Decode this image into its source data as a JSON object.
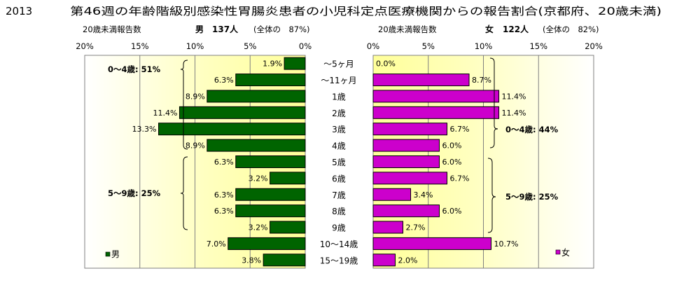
{
  "header": {
    "year": "2013",
    "title": "第46週の年齢階級別感染性胃腸炎患者の小児科定点医療機関からの報告割合(京都府、20歳未満)"
  },
  "left_panel": {
    "caption": "20歳未満報告数",
    "sex": "男",
    "count": "137人",
    "share": "(全体の　87%)",
    "legend": "男",
    "ticks": [
      "20%",
      "15%",
      "10%",
      "5%",
      "0%"
    ],
    "bracket_labels": [
      "0～4歳: 51%",
      "5～9歳: 25%"
    ]
  },
  "right_panel": {
    "caption": "20歳未満報告数",
    "sex": "女",
    "count": "122人",
    "share": "(全体の　82%)",
    "legend": "女",
    "ticks": [
      "0%",
      "5%",
      "10%",
      "15%",
      "20%"
    ],
    "bracket_labels": [
      "0～4歳: 44%",
      "5～9歳: 25%"
    ]
  },
  "chart_data": {
    "type": "bar",
    "orientation": "horizontal-butterfly",
    "categories": [
      "～5ヶ月",
      "～11ヶ月",
      "1歳",
      "2歳",
      "3歳",
      "4歳",
      "5歳",
      "6歳",
      "7歳",
      "8歳",
      "9歳",
      "10～14歳",
      "15～19歳"
    ],
    "series": [
      {
        "name": "男",
        "color": "#006400",
        "values": [
          1.9,
          6.3,
          8.9,
          11.4,
          13.3,
          8.9,
          6.3,
          3.2,
          6.3,
          6.3,
          3.2,
          7.0,
          3.8
        ],
        "labels": [
          "1.9%",
          "6.3%",
          "8.9%",
          "11.4%",
          "13.3%",
          "8.9%",
          "6.3%",
          "3.2%",
          "6.3%",
          "6.3%",
          "3.2%",
          "7.0%",
          "3.8%"
        ]
      },
      {
        "name": "女",
        "color": "#CC00CC",
        "values": [
          0.0,
          8.7,
          11.4,
          11.4,
          6.7,
          6.0,
          6.0,
          6.7,
          3.4,
          6.0,
          2.7,
          10.7,
          2.0
        ],
        "labels": [
          "0.0%",
          "8.7%",
          "11.4%",
          "11.4%",
          "6.7%",
          "6.0%",
          "6.0%",
          "6.7%",
          "3.4%",
          "6.0%",
          "2.7%",
          "10.7%",
          "2.0%"
        ]
      }
    ],
    "xlim": [
      0,
      20
    ],
    "grid": true,
    "plot_background": "#FFFFCC",
    "legend_position": "bottom-left / bottom-right"
  }
}
